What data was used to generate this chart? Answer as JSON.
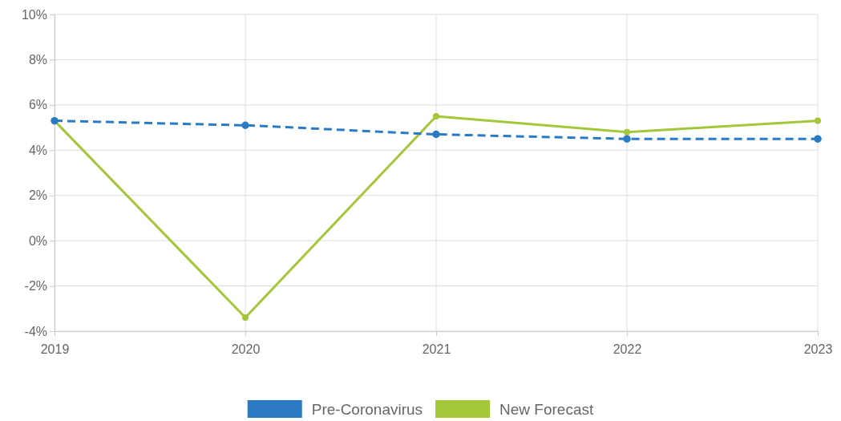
{
  "chart_data": {
    "type": "line",
    "x": [
      2019,
      2020,
      2021,
      2022,
      2023
    ],
    "xlim": [
      2019,
      2023
    ],
    "xticks": [
      2019,
      2020,
      2021,
      2022,
      2023
    ],
    "ylim": [
      -4,
      10
    ],
    "yticks": [
      {
        "value": -4,
        "label": "-4%"
      },
      {
        "value": -2,
        "label": "-2%"
      },
      {
        "value": 0,
        "label": "0%"
      },
      {
        "value": 2,
        "label": "2%"
      },
      {
        "value": 4,
        "label": "4%"
      },
      {
        "value": 6,
        "label": "6%"
      },
      {
        "value": 8,
        "label": "8%"
      },
      {
        "value": 10,
        "label": "10%"
      }
    ],
    "series": [
      {
        "name": "Pre-Coronavirus",
        "color": "#2a7bc4",
        "line_style": "dashed",
        "values": [
          5.3,
          5.1,
          4.7,
          4.5,
          4.5
        ]
      },
      {
        "name": "New Forecast",
        "color": "#a4c639",
        "line_style": "solid",
        "values": [
          5.3,
          -3.4,
          5.5,
          4.8,
          5.3
        ]
      }
    ],
    "grid": true,
    "marker": "circle",
    "legend": "bottom"
  }
}
